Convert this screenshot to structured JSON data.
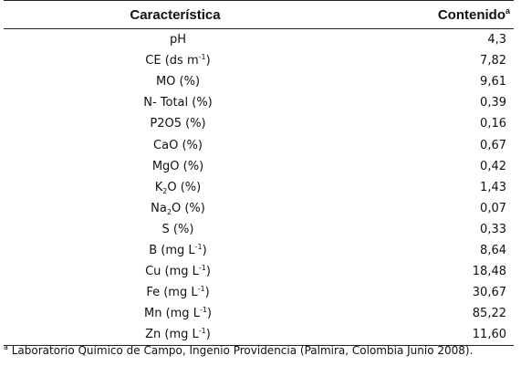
{
  "header": {
    "col_caracteristica": "Característica",
    "col_contenido": "Contenido",
    "col_contenido_mark": "a"
  },
  "rows": [
    {
      "pre": "pH",
      "sub": "",
      "sup": "",
      "post": "",
      "value": "4,3"
    },
    {
      "pre": "CE (ds m",
      "sub": "",
      "sup": "-1",
      "post": ")",
      "value": "7,82"
    },
    {
      "pre": "MO (%)",
      "sub": "",
      "sup": "",
      "post": "",
      "value": "9,61"
    },
    {
      "pre": "N- Total (%)",
      "sub": "",
      "sup": "",
      "post": "",
      "value": "0,39"
    },
    {
      "pre": "P2O5 (%)",
      "sub": "",
      "sup": "",
      "post": "",
      "value": "0,16"
    },
    {
      "pre": "CaO (%)",
      "sub": "",
      "sup": "",
      "post": "",
      "value": "0,67"
    },
    {
      "pre": "MgO (%)",
      "sub": "",
      "sup": "",
      "post": "",
      "value": "0,42"
    },
    {
      "pre": "K",
      "sub": "2",
      "sup": "",
      "post": "O (%)",
      "value": "1,43"
    },
    {
      "pre": "Na",
      "sub": "2",
      "sup": "",
      "post": "O (%)",
      "value": "0,07"
    },
    {
      "pre": "S (%)",
      "sub": "",
      "sup": "",
      "post": "",
      "value": "0,33"
    },
    {
      "pre": "B (mg L",
      "sub": "",
      "sup": "-1",
      "post": ")",
      "value": "8,64"
    },
    {
      "pre": "Cu (mg L",
      "sub": "",
      "sup": "-1",
      "post": ")",
      "value": "18,48"
    },
    {
      "pre": "Fe (mg L",
      "sub": "",
      "sup": "-1",
      "post": ")",
      "value": "30,67"
    },
    {
      "pre": "Mn (mg L",
      "sub": "",
      "sup": "-1",
      "post": ")",
      "value": "85,22"
    },
    {
      "pre": "Zn (mg L",
      "sub": "",
      "sup": "-1",
      "post": ")",
      "value": "11,60"
    }
  ],
  "footnote": {
    "mark": "a",
    "text": "Laboratorio Químico de Campo, Ingenio Providencia (Palmira, Colombia   Junio 2008)."
  }
}
